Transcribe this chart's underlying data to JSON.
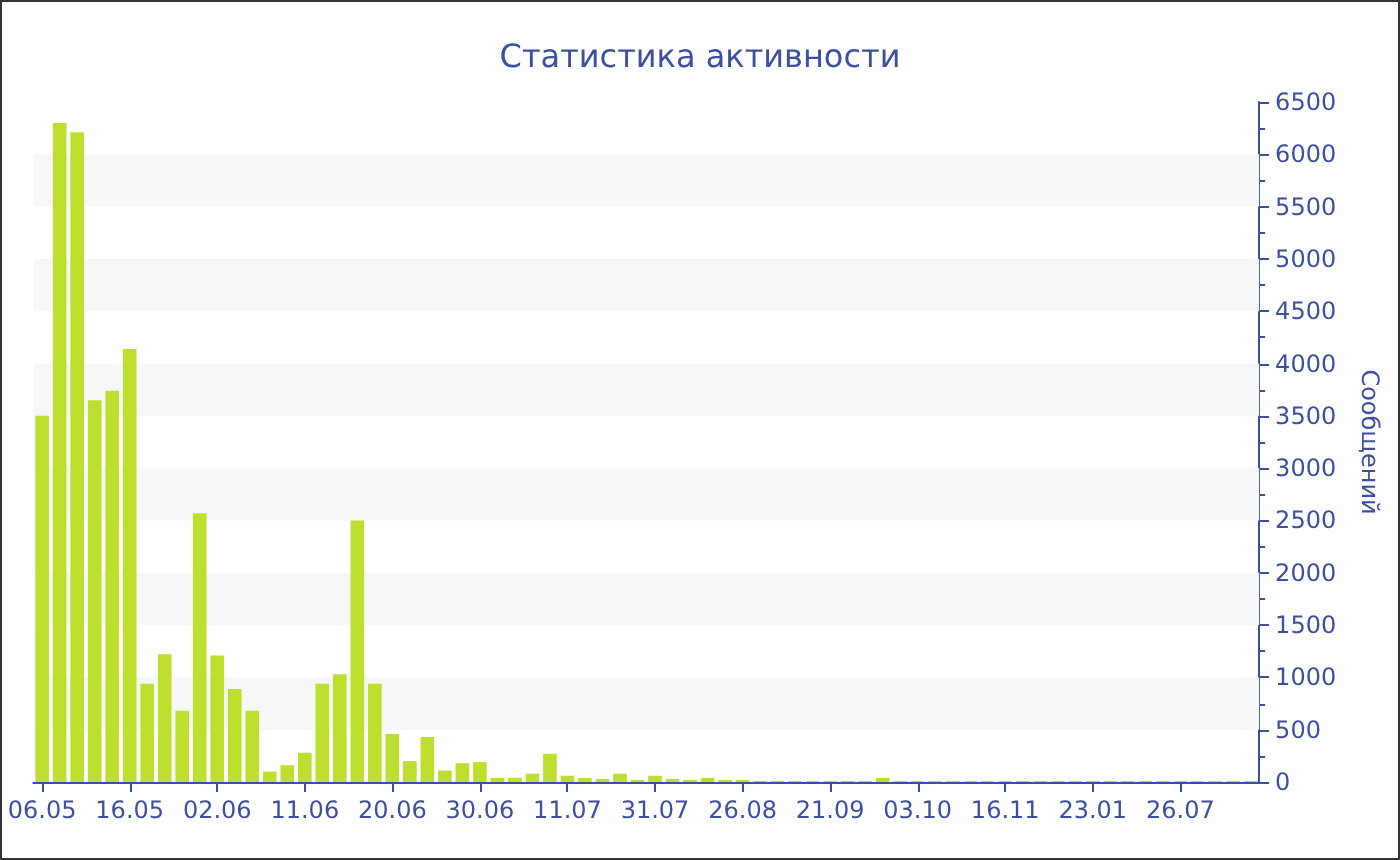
{
  "chart_data": {
    "type": "bar",
    "title": "Статистика активности",
    "ylabel": "Сообщений",
    "categories": [
      "06.05",
      null,
      null,
      null,
      null,
      "16.05",
      null,
      null,
      null,
      null,
      "02.06",
      null,
      null,
      null,
      null,
      "11.06",
      null,
      null,
      null,
      null,
      "20.06",
      null,
      null,
      null,
      null,
      "30.06",
      null,
      null,
      null,
      null,
      "11.07",
      null,
      null,
      null,
      null,
      "31.07",
      null,
      null,
      null,
      null,
      "26.08",
      null,
      null,
      null,
      null,
      "21.09",
      null,
      null,
      null,
      null,
      "03.10",
      null,
      null,
      null,
      null,
      "16.11",
      null,
      null,
      null,
      null,
      "23.01",
      null,
      null,
      null,
      null,
      "26.07",
      null,
      null,
      null,
      null
    ],
    "values": [
      3500,
      6300,
      6210,
      3650,
      3740,
      4140,
      940,
      1220,
      680,
      2570,
      1210,
      890,
      680,
      100,
      160,
      280,
      940,
      1030,
      2500,
      940,
      460,
      200,
      430,
      110,
      180,
      190,
      40,
      40,
      80,
      270,
      60,
      40,
      30,
      80,
      20,
      60,
      30,
      20,
      40,
      20,
      20,
      10,
      10,
      10,
      10,
      10,
      10,
      10,
      40,
      10,
      10,
      10,
      10,
      10,
      10,
      10,
      10,
      10,
      10,
      10,
      10,
      10,
      10,
      10,
      10,
      10,
      10,
      10,
      10,
      10
    ],
    "color": "#bde02f",
    "ylim": [
      0,
      6500
    ],
    "yticks": [
      0,
      500,
      1000,
      1500,
      2000,
      2500,
      3000,
      3500,
      4000,
      4500,
      5000,
      5500,
      6000,
      6500
    ],
    "bands": [
      {
        "axis": "y",
        "from": 500,
        "to": 1000,
        "color": "#f7f7f7"
      },
      {
        "axis": "y",
        "from": 1500,
        "to": 2000,
        "color": "#f7f7f7"
      },
      {
        "axis": "y",
        "from": 2500,
        "to": 3000,
        "color": "#f7f7f7"
      },
      {
        "axis": "y",
        "from": 3500,
        "to": 4000,
        "color": "#f7f7f7"
      },
      {
        "axis": "y",
        "from": 4500,
        "to": 5000,
        "color": "#f7f7f7"
      },
      {
        "axis": "y",
        "from": 5500,
        "to": 6000,
        "color": "#f7f7f7"
      }
    ]
  }
}
